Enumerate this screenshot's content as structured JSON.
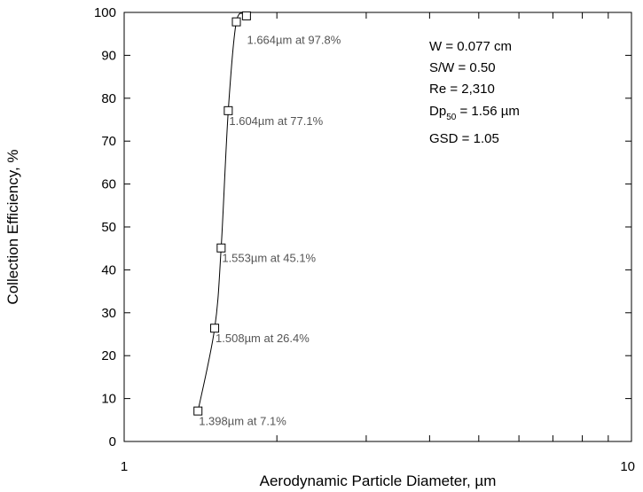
{
  "chart_data": {
    "type": "scatter",
    "title": "",
    "xlabel": "Aerodynamic Particle Diameter, µm",
    "ylabel": "Collection Efficiency, %",
    "xscale": "log",
    "xlim": [
      1,
      10
    ],
    "ylim": [
      0,
      100
    ],
    "x_ticks": [
      "1",
      "10"
    ],
    "y_ticks": [
      "0",
      "10",
      "20",
      "30",
      "40",
      "50",
      "60",
      "70",
      "80",
      "90",
      "100"
    ],
    "grid": false,
    "marker": "open-square",
    "series": [
      {
        "points": [
          {
            "x": 1.398,
            "y": 7.1,
            "label": "1.398µm at 7.1%"
          },
          {
            "x": 1.508,
            "y": 26.4,
            "label": "1.508µm at 26.4%"
          },
          {
            "x": 1.553,
            "y": 45.1,
            "label": "1.553µm at 45.1%"
          },
          {
            "x": 1.604,
            "y": 77.1,
            "label": "1.604µm at 77.1%"
          },
          {
            "x": 1.664,
            "y": 97.8,
            "label": "1.664µm at 97.8%"
          },
          {
            "x": 1.742,
            "y": 99.2,
            "label": ""
          }
        ]
      }
    ],
    "info_box": {
      "w": "W =  0.077 cm",
      "sw": "S/W = 0.50",
      "re": "Re = 2,310",
      "dp_main": "Dp",
      "dp_sub": "50",
      "dp_rest": " = 1.56 µm",
      "gsd": "GSD = 1.05"
    }
  }
}
